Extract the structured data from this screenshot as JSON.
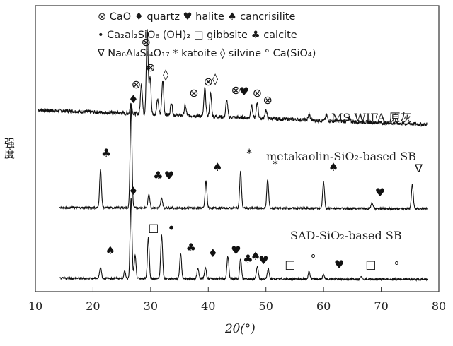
{
  "legend": {
    "line1": "⊗ CaO ♦ quartz ♥ halite ♠ cancrisilite",
    "line2": "• Ca₂al₂SiO₆ (OH)₂ □ gibbsite ♣ calcite",
    "line3": "∇ Na₆Al₄Si₄O₁₇ * katoite ◊ silvine ° Ca(SiO₄)"
  },
  "chart_data": {
    "type": "line",
    "title": "",
    "xlabel": "2θ(°)",
    "ylabel": "强度",
    "xlim": [
      10,
      80
    ],
    "xticks": [
      10,
      20,
      30,
      40,
      50,
      60,
      70,
      80
    ],
    "grid": false,
    "series": [
      {
        "name": "MS WIFA 原灰",
        "baseline_start": 0.78,
        "baseline_end": 0.27,
        "peaks": [
          {
            "x": 26.6,
            "h": 0.35
          },
          {
            "x": 28.4,
            "h": 1.1
          },
          {
            "x": 29.4,
            "h": 3.0
          },
          {
            "x": 29.9,
            "h": 1.3
          },
          {
            "x": 31.2,
            "h": 0.55
          },
          {
            "x": 32.1,
            "h": 1.2
          },
          {
            "x": 33.6,
            "h": 0.45
          },
          {
            "x": 36.0,
            "h": 0.35
          },
          {
            "x": 39.4,
            "h": 1.0
          },
          {
            "x": 40.4,
            "h": 0.8
          },
          {
            "x": 43.2,
            "h": 0.6
          },
          {
            "x": 47.5,
            "h": 0.45
          },
          {
            "x": 48.5,
            "h": 0.55
          },
          {
            "x": 50.0,
            "h": 0.3
          },
          {
            "x": 57.5,
            "h": 0.2
          },
          {
            "x": 60.5,
            "h": 0.2
          },
          {
            "x": 64.5,
            "h": 0.15
          }
        ],
        "markers": [
          {
            "x": 27.5,
            "h": 1.55,
            "symbol": "⊗"
          },
          {
            "x": 29.2,
            "h": 3.05,
            "symbol": "⊗"
          },
          {
            "x": 30.0,
            "h": 2.15,
            "symbol": "⊗"
          },
          {
            "x": 32.6,
            "h": 1.9,
            "symbol": "◊"
          },
          {
            "x": 37.5,
            "h": 1.25,
            "symbol": "⊗"
          },
          {
            "x": 40.0,
            "h": 1.65,
            "symbol": "⊗"
          },
          {
            "x": 41.2,
            "h": 1.75,
            "symbol": "◊"
          },
          {
            "x": 44.8,
            "h": 1.35,
            "symbol": "⊗"
          },
          {
            "x": 46.2,
            "h": 1.3,
            "symbol": "♥"
          },
          {
            "x": 48.5,
            "h": 1.25,
            "symbol": "⊗"
          },
          {
            "x": 50.3,
            "h": 1.0,
            "symbol": "⊗"
          }
        ]
      },
      {
        "name": "metakaolin-SiO₂-based SB",
        "baseline_start": 0.1,
        "baseline_end": 0.06,
        "peaks": [
          {
            "x": 21.3,
            "h": 1.35
          },
          {
            "x": 26.6,
            "h": 3.65
          },
          {
            "x": 29.7,
            "h": 0.5
          },
          {
            "x": 31.9,
            "h": 0.35
          },
          {
            "x": 39.6,
            "h": 0.95
          },
          {
            "x": 45.6,
            "h": 1.3
          },
          {
            "x": 50.3,
            "h": 1.0
          },
          {
            "x": 60.0,
            "h": 0.95
          },
          {
            "x": 68.4,
            "h": 0.2
          },
          {
            "x": 75.4,
            "h": 0.85
          }
        ],
        "markers": [
          {
            "x": 22.3,
            "h": 1.9,
            "symbol": "♣"
          },
          {
            "x": 27.0,
            "h": 3.8,
            "symbol": "♦"
          },
          {
            "x": 31.3,
            "h": 1.1,
            "symbol": "♣"
          },
          {
            "x": 33.2,
            "h": 1.1,
            "symbol": "♥"
          },
          {
            "x": 41.6,
            "h": 1.4,
            "symbol": "♠"
          },
          {
            "x": 47.1,
            "h": 1.9,
            "symbol": "*"
          },
          {
            "x": 51.6,
            "h": 1.5,
            "symbol": "*"
          },
          {
            "x": 61.7,
            "h": 1.4,
            "symbol": "♠"
          },
          {
            "x": 69.8,
            "h": 0.5,
            "symbol": "♥"
          },
          {
            "x": 76.5,
            "h": 1.35,
            "symbol": "∇"
          }
        ]
      },
      {
        "name": "SAD-SiO₂-based SB",
        "baseline_start": 0.1,
        "baseline_end": 0.06,
        "peaks": [
          {
            "x": 21.3,
            "h": 0.4
          },
          {
            "x": 25.5,
            "h": 0.25
          },
          {
            "x": 26.6,
            "h": 2.85
          },
          {
            "x": 27.3,
            "h": 0.8
          },
          {
            "x": 29.6,
            "h": 1.45
          },
          {
            "x": 31.9,
            "h": 1.55
          },
          {
            "x": 35.2,
            "h": 0.9
          },
          {
            "x": 38.2,
            "h": 0.35
          },
          {
            "x": 39.5,
            "h": 0.4
          },
          {
            "x": 43.4,
            "h": 0.8
          },
          {
            "x": 45.6,
            "h": 0.7
          },
          {
            "x": 48.5,
            "h": 0.45
          },
          {
            "x": 50.4,
            "h": 0.35
          },
          {
            "x": 57.5,
            "h": 0.25
          },
          {
            "x": 60.0,
            "h": 0.15
          },
          {
            "x": 66.5,
            "h": 0.12
          }
        ],
        "markers": [
          {
            "x": 23.0,
            "h": 0.95,
            "symbol": "♠"
          },
          {
            "x": 27.0,
            "h": 3.05,
            "symbol": "♦"
          },
          {
            "x": 30.5,
            "h": 1.75,
            "symbol": "□"
          },
          {
            "x": 33.6,
            "h": 1.7,
            "symbol": "•"
          },
          {
            "x": 37.0,
            "h": 1.05,
            "symbol": "♣"
          },
          {
            "x": 40.8,
            "h": 0.85,
            "symbol": "♦"
          },
          {
            "x": 44.8,
            "h": 0.95,
            "symbol": "♥"
          },
          {
            "x": 46.9,
            "h": 0.65,
            "symbol": "♣"
          },
          {
            "x": 48.2,
            "h": 0.75,
            "symbol": "♠"
          },
          {
            "x": 49.6,
            "h": 0.6,
            "symbol": "♥"
          },
          {
            "x": 54.2,
            "h": 0.45,
            "symbol": "□"
          },
          {
            "x": 58.2,
            "h": 0.65,
            "symbol": "°"
          },
          {
            "x": 62.7,
            "h": 0.45,
            "symbol": "♥"
          },
          {
            "x": 68.2,
            "h": 0.45,
            "symbol": "□"
          },
          {
            "x": 72.7,
            "h": 0.4,
            "symbol": "°"
          }
        ]
      }
    ]
  }
}
